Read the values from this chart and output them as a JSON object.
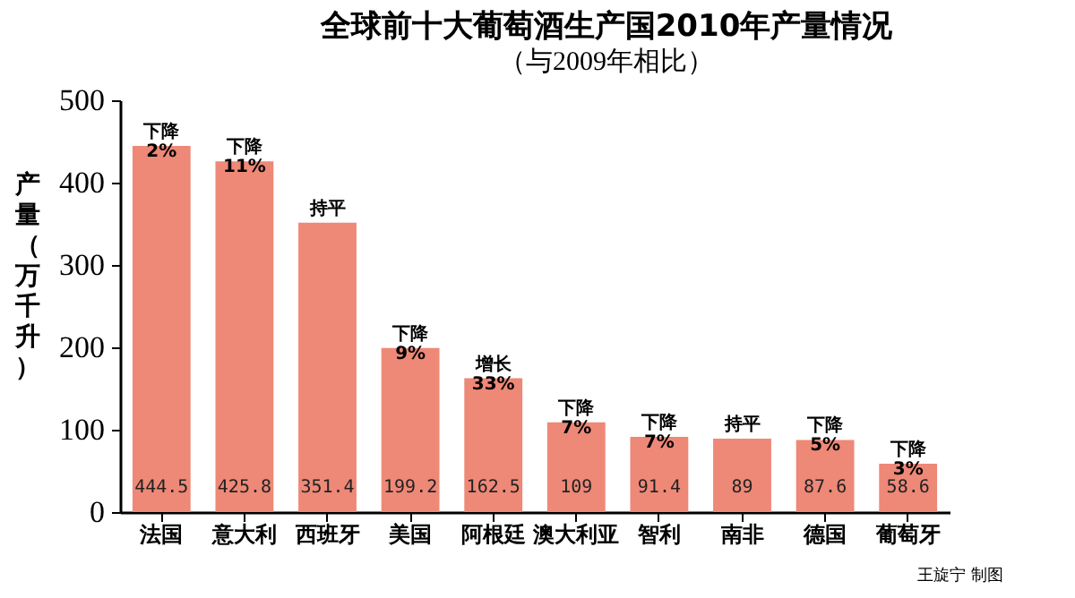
{
  "chart_data": {
    "type": "bar",
    "title": "全球前十大葡萄酒生产国2010年产量情况",
    "subtitle": "（与2009年相比）",
    "ylabel": "产量（万千升）",
    "categories": [
      "法国",
      "意大利",
      "西班牙",
      "美国",
      "阿根廷",
      "澳大利亚",
      "智利",
      "南非",
      "德国",
      "葡萄牙"
    ],
    "values": [
      444.5,
      425.8,
      351.4,
      199.2,
      162.5,
      109,
      91.4,
      89,
      87.6,
      58.6
    ],
    "color": "#ee8877",
    "ylim": [
      0,
      500
    ],
    "yticks": [
      0,
      100,
      200,
      300,
      400,
      500
    ],
    "grid": false,
    "data_labels": true,
    "annotations": [
      {
        "text": "下降\n2%",
        "x": "法国",
        "y": 444.5
      },
      {
        "text": "下降\n11%",
        "x": "意大利",
        "y": 425.8
      },
      {
        "text": "持平",
        "x": "西班牙",
        "y": 351.4
      },
      {
        "text": "下降\n9%",
        "x": "美国",
        "y": 199.2
      },
      {
        "text": "增长\n33%",
        "x": "阿根廷",
        "y": 162.5
      },
      {
        "text": "下降\n7%",
        "x": "澳大利亚",
        "y": 109
      },
      {
        "text": "下降\n7%",
        "x": "智利",
        "y": 91.4
      },
      {
        "text": "持平",
        "x": "南非",
        "y": 89
      },
      {
        "text": "下降\n5%",
        "x": "德国",
        "y": 87.6
      },
      {
        "text": "下降\n3%",
        "x": "葡萄牙",
        "y": 58.6
      },
      "王旋宁 制图"
    ]
  }
}
